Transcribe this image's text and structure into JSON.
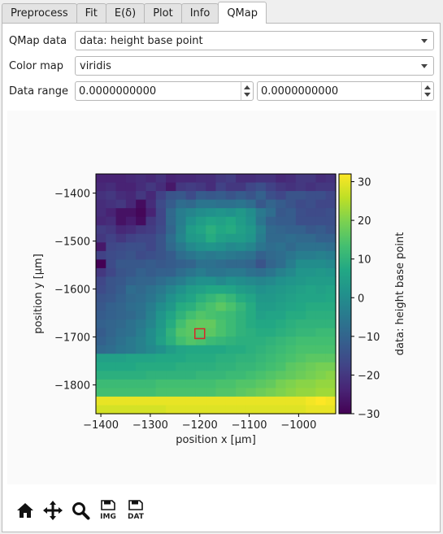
{
  "tabs": [
    {
      "label": "Preprocess",
      "active": false
    },
    {
      "label": "Fit",
      "active": false
    },
    {
      "label": "E(δ)",
      "active": false
    },
    {
      "label": "Plot",
      "active": false
    },
    {
      "label": "Info",
      "active": false
    },
    {
      "label": "QMap",
      "active": true
    }
  ],
  "form": {
    "qmap_label": "QMap data",
    "qmap_value": "data: height base point",
    "colormap_label": "Color map",
    "colormap_value": "viridis",
    "range_label": "Data range",
    "range_min": "0.0000000000",
    "range_max": "0.0000000000"
  },
  "toolbar": {
    "home": "home-icon",
    "pan": "pan-icon",
    "zoom": "zoom-icon",
    "save_image": "IMG",
    "save_data": "DAT"
  },
  "chart_data": {
    "type": "heatmap",
    "title": "",
    "xlabel": "position x [µm]",
    "ylabel": "position y [µm]",
    "xlim": [
      -1410,
      -925
    ],
    "ylim": [
      -1860,
      -1360
    ],
    "xticks": [
      -1400,
      -1300,
      -1200,
      -1100,
      -1000
    ],
    "xtick_labels": [
      "−1400",
      "−1300",
      "−1200",
      "−1100",
      "−1000"
    ],
    "yticks": [
      -1400,
      -1500,
      -1600,
      -1700,
      -1800
    ],
    "ytick_labels": [
      "−1400",
      "−1500",
      "−1600",
      "−1700",
      "−1800"
    ],
    "colorbar_label": "data: height base point",
    "colorbar_range": [
      -30,
      32
    ],
    "colorbar_ticks": [
      30,
      20,
      10,
      0,
      -10,
      -20,
      -30
    ],
    "colorbar_tick_labels": [
      "30",
      "20",
      "10",
      "0",
      "−10",
      "−20",
      "−30"
    ],
    "colormap": "viridis",
    "marker": {
      "x": -1200,
      "y": -1693,
      "color": "#d62728"
    },
    "values": [
      [
        -24,
        -24,
        -24,
        -23,
        -22,
        -23,
        -21,
        -24,
        -23,
        -23,
        -22,
        -22,
        -20,
        -19,
        -22,
        -22,
        -21,
        -21,
        -23,
        -22,
        -20,
        -20,
        -22,
        -21
      ],
      [
        -23,
        -22,
        -24,
        -24,
        -22,
        -20,
        -22,
        -26,
        -20,
        -19,
        -20,
        -22,
        -18,
        -20,
        -20,
        -17,
        -15,
        -18,
        -20,
        -21,
        -20,
        -21,
        -20,
        -20
      ],
      [
        -21,
        -20,
        -22,
        -23,
        -20,
        -23,
        -18,
        -14,
        -13,
        -16,
        -12,
        -13,
        -12,
        -14,
        -12,
        -14,
        -11,
        -15,
        -17,
        -14,
        -14,
        -15,
        -15,
        -17
      ],
      [
        -22,
        -21,
        -20,
        -23,
        -28,
        -22,
        -16,
        -12,
        -8,
        -9,
        -6,
        -6,
        -7,
        -7,
        -6,
        -8,
        -13,
        -10,
        -12,
        -14,
        -16,
        -15,
        -17,
        -17
      ],
      [
        -22,
        -24,
        -27,
        -27,
        -29,
        -24,
        -17,
        -9,
        -4,
        -2,
        0,
        1,
        2,
        1,
        3,
        0,
        -5,
        -8,
        -13,
        -12,
        -15,
        -16,
        -16,
        -15
      ],
      [
        -23,
        -22,
        -27,
        -25,
        -28,
        -20,
        -17,
        -9,
        -4,
        1,
        4,
        6,
        5,
        7,
        4,
        1,
        -6,
        -11,
        -12,
        -12,
        -15,
        -15,
        -15,
        -15
      ],
      [
        -19,
        -20,
        -23,
        -22,
        -20,
        -19,
        -16,
        -10,
        -3,
        4,
        6,
        9,
        7,
        8,
        5,
        3,
        -3,
        -9,
        -10,
        -11,
        -11,
        -13,
        -12,
        -14
      ],
      [
        -20,
        -18,
        -20,
        -18,
        -17,
        -17,
        -14,
        -8,
        -2,
        3,
        4,
        8,
        5,
        4,
        4,
        2,
        -4,
        -9,
        -9,
        -8,
        -9,
        -9,
        -11,
        -11
      ],
      [
        -26,
        -17,
        -16,
        -15,
        -15,
        -17,
        -14,
        -9,
        -5,
        -1,
        1,
        2,
        1,
        -1,
        0,
        -2,
        -6,
        -8,
        -7,
        -9,
        -7,
        -7,
        -7,
        -8
      ],
      [
        -18,
        -16,
        -15,
        -14,
        -16,
        -15,
        -14,
        -12,
        -8,
        -6,
        -4,
        -5,
        -4,
        -5,
        -6,
        -7,
        -11,
        -9,
        -8,
        -6,
        -4,
        -4,
        -3,
        -4
      ],
      [
        -30,
        -16,
        -13,
        -13,
        -13,
        -12,
        -13,
        -12,
        -11,
        -10,
        -7,
        -7,
        -8,
        -9,
        -9,
        -10,
        -14,
        -10,
        -8,
        -4,
        0,
        0,
        0,
        -1
      ],
      [
        -20,
        -17,
        -14,
        -13,
        -11,
        -12,
        -11,
        -11,
        -8,
        -6,
        -4,
        -6,
        -6,
        -5,
        -5,
        -7,
        -8,
        -6,
        -3,
        -1,
        2,
        2,
        3,
        2
      ],
      [
        -17,
        -14,
        -13,
        -11,
        -10,
        -10,
        -8,
        -6,
        -4,
        -1,
        1,
        1,
        -1,
        1,
        0,
        -1,
        -2,
        -1,
        1,
        2,
        3,
        4,
        4,
        4
      ],
      [
        -16,
        -14,
        -12,
        -8,
        -9,
        -7,
        -5,
        -2,
        1,
        4,
        5,
        7,
        7,
        6,
        4,
        3,
        1,
        2,
        3,
        4,
        5,
        6,
        5,
        6
      ],
      [
        -14,
        -13,
        -11,
        -9,
        -8,
        -6,
        -3,
        1,
        4,
        6,
        9,
        11,
        13,
        11,
        8,
        6,
        3,
        3,
        4,
        5,
        6,
        6,
        6,
        7
      ],
      [
        -13,
        -11,
        -10,
        -8,
        -7,
        -4,
        0,
        3,
        8,
        9,
        12,
        14,
        16,
        14,
        11,
        8,
        4,
        4,
        5,
        6,
        7,
        8,
        8,
        8
      ],
      [
        -12,
        -11,
        -10,
        -9,
        -7,
        -3,
        2,
        6,
        10,
        13,
        15,
        14,
        13,
        12,
        10,
        8,
        5,
        6,
        6,
        8,
        8,
        9,
        9,
        9
      ],
      [
        -11,
        -10,
        -9,
        -7,
        -5,
        -2,
        3,
        8,
        13,
        16,
        17,
        17,
        14,
        12,
        10,
        8,
        7,
        7,
        8,
        9,
        10,
        10,
        10,
        10
      ],
      [
        -12,
        -10,
        -8,
        -7,
        -4,
        0,
        4,
        10,
        15,
        16,
        16,
        16,
        14,
        12,
        10,
        9,
        8,
        8,
        9,
        10,
        11,
        11,
        12,
        12
      ],
      [
        -11,
        -9,
        -7,
        -5,
        -3,
        0,
        5,
        9,
        13,
        15,
        14,
        12,
        11,
        10,
        9,
        9,
        9,
        10,
        11,
        12,
        13,
        13,
        13,
        13
      ],
      [
        -9,
        -8,
        -6,
        -5,
        -3,
        -1,
        1,
        4,
        6,
        7,
        7,
        7,
        7,
        8,
        8,
        9,
        10,
        11,
        12,
        13,
        14,
        14,
        14,
        14
      ],
      [
        5,
        5,
        5,
        6,
        6,
        6,
        7,
        7,
        7,
        8,
        8,
        8,
        9,
        9,
        10,
        10,
        11,
        12,
        13,
        14,
        15,
        16,
        16,
        16
      ],
      [
        7,
        7,
        7,
        7,
        8,
        8,
        8,
        8,
        9,
        9,
        9,
        9,
        10,
        10,
        11,
        11,
        12,
        13,
        14,
        16,
        17,
        18,
        19,
        19
      ],
      [
        9,
        9,
        9,
        9,
        9,
        10,
        10,
        10,
        10,
        10,
        11,
        11,
        11,
        12,
        12,
        13,
        14,
        15,
        16,
        17,
        18,
        19,
        20,
        21
      ],
      [
        12,
        12,
        12,
        12,
        12,
        12,
        13,
        13,
        13,
        13,
        13,
        13,
        14,
        14,
        15,
        15,
        16,
        17,
        19,
        20,
        21,
        21,
        22,
        22
      ],
      [
        13,
        13,
        13,
        13,
        13,
        13,
        14,
        14,
        14,
        14,
        14,
        14,
        15,
        15,
        16,
        17,
        18,
        19,
        20,
        21,
        22,
        22,
        23,
        23
      ],
      [
        30,
        30,
        30,
        30,
        30,
        30,
        30,
        30,
        30,
        30,
        30,
        30,
        30,
        30,
        30,
        30,
        30,
        30,
        30,
        30,
        30,
        31,
        32,
        31
      ],
      [
        28,
        28,
        28,
        28,
        28,
        28,
        28,
        29,
        29,
        29,
        29,
        29,
        29,
        29,
        29,
        29,
        29,
        29,
        29,
        29,
        29,
        30,
        30,
        30
      ]
    ]
  }
}
